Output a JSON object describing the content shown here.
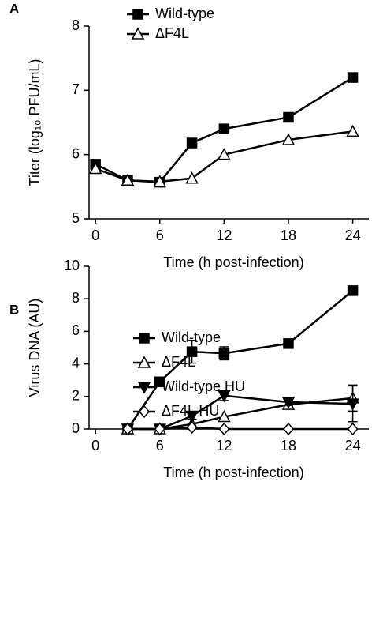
{
  "chart_data": [
    {
      "type": "line",
      "panel_label": "A",
      "xlabel": "Time (h post-infection)",
      "ylabel": "Titer (log₁₀ PFU/mL)",
      "x": [
        0,
        3,
        6,
        9,
        12,
        18,
        24
      ],
      "xlim": [
        -0.6,
        25.5
      ],
      "xticks": [
        0,
        6,
        12,
        18,
        24
      ],
      "ylim": [
        5,
        8
      ],
      "yticks": [
        5,
        6,
        7,
        8
      ],
      "legend": "upper left",
      "series": [
        {
          "name": "Wild-type",
          "color": "#000000",
          "marker": "square",
          "filled": true,
          "values": [
            5.85,
            5.6,
            5.57,
            6.18,
            6.4,
            6.58,
            7.2
          ]
        },
        {
          "name": "ΔF4L",
          "color": "#000000",
          "marker": "triangle",
          "filled": false,
          "values": [
            5.78,
            5.6,
            5.58,
            5.63,
            6.0,
            6.23,
            6.36
          ]
        }
      ]
    },
    {
      "type": "line",
      "panel_label": "B",
      "xlabel": "Time (h post-infection)",
      "ylabel": "Virus DNA (AU)",
      "x": [
        3,
        6,
        9,
        12,
        18,
        24
      ],
      "xlim": [
        -0.6,
        25.5
      ],
      "xticks": [
        0,
        6,
        12,
        18,
        24
      ],
      "ylim": [
        0,
        10
      ],
      "yticks": [
        0,
        2,
        4,
        6,
        8,
        10
      ],
      "legend": "upper left",
      "series": [
        {
          "name": "Wild-type",
          "color": "#000000",
          "marker": "square",
          "filled": true,
          "values": [
            0,
            2.9,
            4.75,
            4.65,
            5.25,
            8.5
          ],
          "errors": [
            null,
            null,
            0.7,
            0.4,
            null,
            null
          ]
        },
        {
          "name": "ΔF4L",
          "color": "#000000",
          "marker": "triangle",
          "filled": false,
          "values": [
            0,
            0,
            0.3,
            0.75,
            1.5,
            1.9
          ],
          "errors": [
            null,
            null,
            null,
            null,
            null,
            0.8
          ]
        },
        {
          "name": "Wild-type  HU",
          "color": "#000000",
          "marker": "triangle-down",
          "filled": true,
          "values": [
            0,
            0,
            0.8,
            2.05,
            1.65,
            1.55
          ],
          "errors": [
            null,
            null,
            0.2,
            0.3,
            0.2,
            1.1
          ]
        },
        {
          "name": "ΔF4L  HU",
          "color": "#000000",
          "marker": "diamond",
          "filled": false,
          "values": [
            0,
            0,
            0.1,
            0,
            0,
            0
          ],
          "errors": [
            null,
            null,
            null,
            null,
            null,
            null
          ]
        }
      ]
    }
  ]
}
